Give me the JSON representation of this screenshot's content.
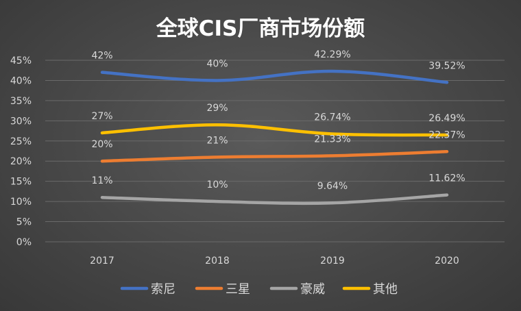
{
  "chart_data": {
    "type": "line",
    "title": "全球CIS厂商市场份额",
    "categories": [
      "2017",
      "2018",
      "2019",
      "2020"
    ],
    "ylim": [
      0,
      45
    ],
    "yticks": [
      0,
      5,
      10,
      15,
      20,
      25,
      30,
      35,
      40,
      45
    ],
    "ytick_suffix": "%",
    "grid": true,
    "legend_position": "bottom",
    "series": [
      {
        "name": "索尼",
        "color": "#4472c4",
        "values": [
          42,
          40,
          42.29,
          39.52
        ],
        "labels": [
          "42%",
          "40%",
          "42.29%",
          "39.52%"
        ]
      },
      {
        "name": "三星",
        "color": "#ed7d31",
        "values": [
          20,
          21,
          21.33,
          22.37
        ],
        "labels": [
          "20%",
          "21%",
          "21.33%",
          "22.37%"
        ]
      },
      {
        "name": "豪威",
        "color": "#a5a5a5",
        "values": [
          11,
          10,
          9.64,
          11.62
        ],
        "labels": [
          "11%",
          "10%",
          "9.64%",
          "11.62%"
        ]
      },
      {
        "name": "其他",
        "color": "#ffc000",
        "values": [
          27,
          29,
          26.74,
          26.49
        ],
        "labels": [
          "27%",
          "29%",
          "26.74%",
          "26.49%"
        ]
      }
    ]
  }
}
